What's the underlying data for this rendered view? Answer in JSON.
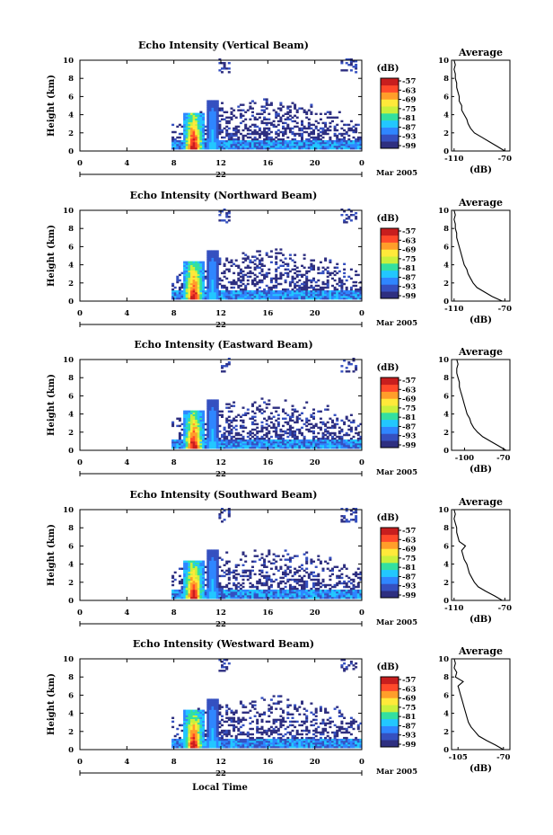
{
  "figure": {
    "xlabel": "Local Time",
    "day_label_prefix": "Mar 2005",
    "colorbar_unit": "(dB)",
    "colorbar_ticks": [
      "-57",
      "-63",
      "-69",
      "-75",
      "-81",
      "-87",
      "-93",
      "-99"
    ],
    "avg_title": "Average",
    "avg_xlabel": "(dB)",
    "colors": [
      "#2e2f80",
      "#3550c0",
      "#2f86ff",
      "#22c7ff",
      "#33e0a0",
      "#c9f03c",
      "#ffe93a",
      "#ff9e2a",
      "#ff4a2a",
      "#c81e1e"
    ]
  },
  "chart_data": [
    {
      "type": "heatmap",
      "title": "Echo Intensity (Vertical Beam)",
      "xlabel": "",
      "ylabel": "Height (km)",
      "xlim": [
        0,
        24
      ],
      "ylim": [
        0,
        10
      ],
      "xticks": [
        "0",
        "4",
        "8",
        "12",
        "16",
        "20",
        "0"
      ],
      "yticks": [
        "0",
        "2",
        "4",
        "6",
        "8",
        "10"
      ],
      "day_label": "22",
      "colorbar": {
        "unit": "(dB)",
        "range_db": [
          -99,
          -57
        ]
      },
      "average_profile": {
        "title": "Average",
        "xlabel": "(dB)",
        "xticks": [
          "-110",
          "-70"
        ],
        "xlim": [
          -112,
          -66
        ],
        "heights": [
          0,
          0.5,
          1,
          1.5,
          2,
          2.5,
          3,
          3.5,
          4,
          4.5,
          5,
          5.5,
          6,
          6.5,
          7,
          7.5,
          8,
          8.5,
          9,
          9.5,
          10
        ],
        "values": [
          -70,
          -76,
          -82,
          -88,
          -94,
          -97,
          -99,
          -100,
          -102,
          -104,
          -104,
          -106,
          -106,
          -107,
          -108,
          -108,
          -109,
          -109,
          -110,
          -109,
          -110
        ]
      }
    },
    {
      "type": "heatmap",
      "title": "Echo Intensity (Northward Beam)",
      "xlabel": "",
      "ylabel": "Height (km)",
      "xlim": [
        0,
        24
      ],
      "ylim": [
        0,
        10
      ],
      "xticks": [
        "0",
        "4",
        "8",
        "12",
        "16",
        "20",
        "0"
      ],
      "yticks": [
        "0",
        "2",
        "4",
        "6",
        "8",
        "10"
      ],
      "day_label": "22",
      "colorbar": {
        "unit": "(dB)",
        "range_db": [
          -99,
          -57
        ]
      },
      "average_profile": {
        "title": "Average",
        "xlabel": "(dB)",
        "xticks": [
          "-110",
          "-70"
        ],
        "xlim": [
          -112,
          -66
        ],
        "heights": [
          0,
          0.5,
          1,
          1.5,
          2,
          2.5,
          3,
          3.5,
          4,
          4.5,
          5,
          5.5,
          6,
          6.5,
          7,
          7.5,
          8,
          8.5,
          9,
          9.5,
          10
        ],
        "values": [
          -72,
          -80,
          -86,
          -92,
          -95,
          -97,
          -99,
          -100,
          -102,
          -103,
          -104,
          -105,
          -106,
          -107,
          -108,
          -108,
          -109,
          -109,
          -110,
          -109,
          -110
        ]
      }
    },
    {
      "type": "heatmap",
      "title": "Echo Intensity (Eastward Beam)",
      "xlabel": "",
      "ylabel": "Height (km)",
      "xlim": [
        0,
        24
      ],
      "ylim": [
        0,
        10
      ],
      "xticks": [
        "0",
        "4",
        "8",
        "12",
        "16",
        "20",
        "0"
      ],
      "yticks": [
        "0",
        "2",
        "4",
        "6",
        "8",
        "10"
      ],
      "day_label": "22",
      "colorbar": {
        "unit": "(dB)",
        "range_db": [
          -99,
          -57
        ]
      },
      "average_profile": {
        "title": "Average",
        "xlabel": "(dB)",
        "xticks": [
          "-100",
          "-70"
        ],
        "xlim": [
          -110,
          -65
        ],
        "heights": [
          0,
          0.5,
          1,
          1.5,
          2,
          2.5,
          3,
          3.5,
          4,
          4.5,
          5,
          5.5,
          6,
          6.5,
          7,
          7.5,
          8,
          8.5,
          9,
          9.5,
          10
        ],
        "values": [
          -68,
          -74,
          -80,
          -86,
          -90,
          -93,
          -95,
          -96,
          -98,
          -99,
          -100,
          -101,
          -102,
          -103,
          -104,
          -104,
          -105,
          -106,
          -106,
          -105,
          -106
        ]
      }
    },
    {
      "type": "heatmap",
      "title": "Echo Intensity (Southward Beam)",
      "xlabel": "",
      "ylabel": "Height (km)",
      "xlim": [
        0,
        24
      ],
      "ylim": [
        0,
        10
      ],
      "xticks": [
        "0",
        "4",
        "8",
        "12",
        "16",
        "20",
        "0"
      ],
      "yticks": [
        "0",
        "2",
        "4",
        "6",
        "8",
        "10"
      ],
      "day_label": "22",
      "colorbar": {
        "unit": "(dB)",
        "range_db": [
          -99,
          -57
        ]
      },
      "average_profile": {
        "title": "Average",
        "xlabel": "(dB)",
        "xticks": [
          "-110",
          "-70"
        ],
        "xlim": [
          -112,
          -66
        ],
        "heights": [
          0,
          0.5,
          1,
          1.5,
          2,
          2.5,
          3,
          3.5,
          4,
          4.5,
          5,
          5.5,
          6,
          6.5,
          7,
          7.5,
          8,
          8.5,
          9,
          9.5,
          10
        ],
        "values": [
          -72,
          -78,
          -85,
          -91,
          -94,
          -96,
          -98,
          -99,
          -100,
          -102,
          -103,
          -104,
          -101,
          -106,
          -107,
          -108,
          -108,
          -109,
          -110,
          -109,
          -110
        ]
      }
    },
    {
      "type": "heatmap",
      "title": "Echo Intensity (Westward Beam)",
      "xlabel": "Local Time",
      "ylabel": "Height (km)",
      "xlim": [
        0,
        24
      ],
      "ylim": [
        0,
        10
      ],
      "xticks": [
        "0",
        "4",
        "8",
        "12",
        "16",
        "20",
        "0"
      ],
      "yticks": [
        "0",
        "2",
        "4",
        "6",
        "8",
        "10"
      ],
      "day_label": "22",
      "colorbar": {
        "unit": "(dB)",
        "range_db": [
          -99,
          -57
        ]
      },
      "average_profile": {
        "title": "Average",
        "xlabel": "(dB)",
        "xticks": [
          "-105",
          "-70"
        ],
        "xlim": [
          -110,
          -65
        ],
        "heights": [
          0,
          0.5,
          1,
          1.5,
          2,
          2.5,
          3,
          3.5,
          4,
          4.5,
          5,
          5.5,
          6,
          6.5,
          7,
          7.5,
          8,
          8.5,
          9,
          9.5,
          10
        ],
        "values": [
          -70,
          -76,
          -83,
          -89,
          -92,
          -95,
          -97,
          -98,
          -99,
          -100,
          -101,
          -102,
          -103,
          -104,
          -105,
          -101,
          -107,
          -106,
          -108,
          -107,
          -108
        ]
      }
    }
  ]
}
